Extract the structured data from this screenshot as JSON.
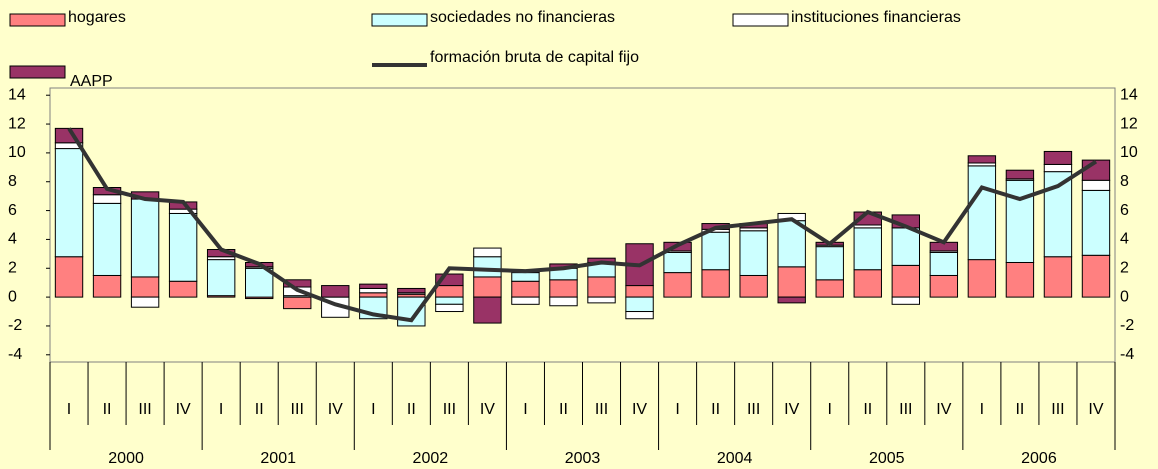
{
  "chart_data": {
    "type": "bar",
    "stacked": true,
    "categories": [
      "I",
      "II",
      "III",
      "IV",
      "I",
      "II",
      "III",
      "IV",
      "I",
      "II",
      "III",
      "IV",
      "I",
      "II",
      "III",
      "IV",
      "I",
      "II",
      "III",
      "IV",
      "I",
      "II",
      "III",
      "IV",
      "I",
      "II",
      "III",
      "IV"
    ],
    "groups": [
      "2000",
      "2001",
      "2002",
      "2003",
      "2004",
      "2005",
      "2006"
    ],
    "series": [
      {
        "name": "hogares",
        "color": "#ff8080",
        "values": [
          2.8,
          1.5,
          1.4,
          1.1,
          0.1,
          -0.1,
          -0.8,
          0,
          0.3,
          0.2,
          0.8,
          1.4,
          1.1,
          1.2,
          1.4,
          0.8,
          1.7,
          1.9,
          1.5,
          2.1,
          1.2,
          1.9,
          2.2,
          1.5,
          2.6,
          2.4,
          2.8,
          2.9
        ]
      },
      {
        "name": "sociedades no financieras",
        "color": "#ccffff",
        "values": [
          7.5,
          5.0,
          5.4,
          4.7,
          2.5,
          2.0,
          0.1,
          0,
          -1.5,
          -2.0,
          -0.5,
          1.4,
          0.6,
          0.8,
          1.0,
          -1.0,
          1.4,
          2.6,
          3.1,
          3.2,
          2.3,
          2.9,
          2.6,
          1.6,
          6.5,
          5.7,
          5.9,
          4.5
        ]
      },
      {
        "name": "instituciones financieras",
        "color": "#ffffff",
        "values": [
          0.4,
          0.6,
          -0.7,
          0.3,
          0.2,
          0.1,
          0.6,
          -1.4,
          0.3,
          0.1,
          -0.5,
          0.6,
          -0.5,
          -0.6,
          -0.4,
          -0.5,
          0.1,
          0.2,
          0.2,
          0.5,
          0.1,
          0.2,
          -0.5,
          0.1,
          0.2,
          0.1,
          0.5,
          0.7
        ]
      },
      {
        "name": "AAPP",
        "color": "#993366",
        "values": [
          1.0,
          0.5,
          0.5,
          0.5,
          0.5,
          0.3,
          0.5,
          0.8,
          0.3,
          0.3,
          0.8,
          -1.8,
          0.1,
          0.3,
          0.3,
          2.9,
          0.6,
          0.4,
          0.3,
          -0.4,
          0.2,
          0.9,
          0.9,
          0.6,
          0.5,
          0.6,
          0.9,
          1.4
        ]
      },
      {
        "name": "formación bruta de capital fijo",
        "color": "#333333",
        "kind": "line",
        "values": [
          11.7,
          7.5,
          6.8,
          6.6,
          3.3,
          2.3,
          0.5,
          -0.5,
          -1.2,
          -1.6,
          2.0,
          1.9,
          1.8,
          2.0,
          2.4,
          2.2,
          3.6,
          4.8,
          5.1,
          5.4,
          3.7,
          5.9,
          4.9,
          3.8,
          7.6,
          6.8,
          7.7,
          9.4
        ]
      }
    ],
    "ylim": [
      -4.5,
      14.5
    ],
    "yticks": [
      14,
      12,
      10,
      8,
      6,
      4,
      2,
      0,
      -2,
      -4
    ]
  }
}
